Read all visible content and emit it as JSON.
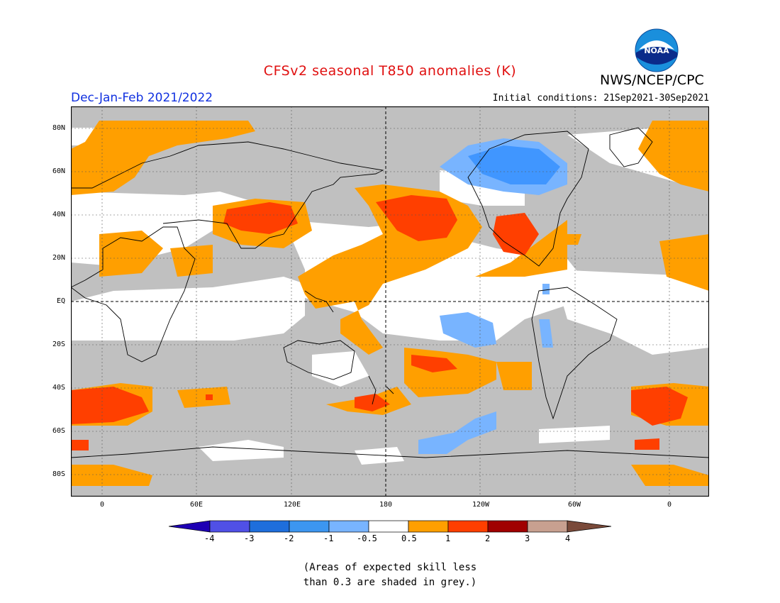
{
  "header": {
    "title": "CFSv2 seasonal T850 anomalies (K)",
    "agency": "NWS/NCEP/CPC",
    "logo_text": "NOAA",
    "season": "Dec-Jan-Feb 2021/2022",
    "initial_conditions": "Initial conditions: 21Sep2021-30Sep2021"
  },
  "map": {
    "lat_labels": [
      "80N",
      "60N",
      "40N",
      "20N",
      "EQ",
      "20S",
      "40S",
      "60S",
      "80S"
    ],
    "lon_labels": [
      "0",
      "60E",
      "120E",
      "180",
      "120W",
      "60W",
      "0"
    ],
    "colors": {
      "grey_skill": "#c0c0c0",
      "ocean_white": "#ffffff",
      "orange": "#ff9f00",
      "red": "#ff3f00",
      "light_blue": "#78b4ff",
      "blue": "#4096ff"
    }
  },
  "colorbar": {
    "labels": [
      "-4",
      "-3",
      "-2",
      "-1",
      "-0.5",
      "0.5",
      "1",
      "2",
      "3",
      "4"
    ],
    "colors": [
      "#1e00b4",
      "#5050e6",
      "#1e6edc",
      "#3c96f0",
      "#78b4ff",
      "#ffffff",
      "#ff9f00",
      "#ff3f00",
      "#a00000",
      "#c8a090",
      "#7a4a3a"
    ]
  },
  "footnote": {
    "line1": "(Areas of expected skill less",
    "line2": "than 0.3 are shaded in grey.)"
  }
}
